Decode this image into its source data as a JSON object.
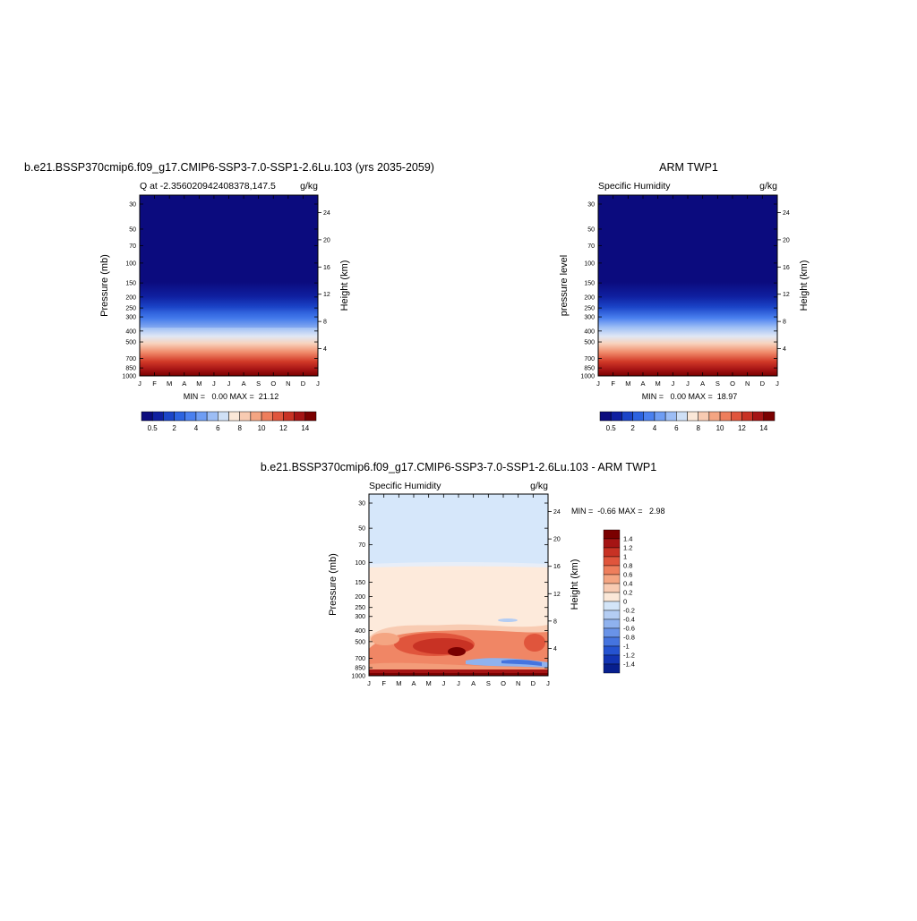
{
  "chart_data": [
    {
      "type": "heatmap",
      "panel": "model",
      "title": "b.e21.BSSP370cmip6.f09_g17.CMIP6-SSP3-7.0-SSP1-2.6Lu.103 (yrs 2035-2059)",
      "subtitle_left": "Q at -2.356020942408378,147.5",
      "subtitle_right": "g/kg",
      "ylabel": "Pressure (mb)",
      "ylabel_right": "Height (km)",
      "x_ticks": [
        "J",
        "F",
        "M",
        "A",
        "M",
        "J",
        "J",
        "A",
        "S",
        "O",
        "N",
        "D",
        "J"
      ],
      "y_ticks": [
        "30",
        "50",
        "70",
        "100",
        "150",
        "200",
        "250",
        "300",
        "400",
        "500",
        "700",
        "850",
        "1000"
      ],
      "y_ticks_right": [
        "24",
        "20",
        "16",
        "12",
        "8",
        "4"
      ],
      "y_scale": "log",
      "ylim": [
        1000,
        25
      ],
      "min_max": "MIN =   0.00 MAX =  21.12",
      "colorbar_labels": [
        "0.5",
        "2",
        "4",
        "6",
        "8",
        "10",
        "12",
        "14"
      ],
      "colorbar_orientation": "horizontal"
    },
    {
      "type": "heatmap",
      "panel": "obs",
      "title": "ARM TWP1",
      "subtitle_left": "Specific Humidity",
      "subtitle_right": "g/kg",
      "ylabel": "pressure level",
      "ylabel_right": "Height (km)",
      "x_ticks": [
        "J",
        "F",
        "M",
        "A",
        "M",
        "J",
        "J",
        "A",
        "S",
        "O",
        "N",
        "D",
        "J"
      ],
      "y_ticks": [
        "30",
        "50",
        "70",
        "100",
        "150",
        "200",
        "250",
        "300",
        "400",
        "500",
        "700",
        "850",
        "1000"
      ],
      "y_ticks_right": [
        "24",
        "20",
        "16",
        "12",
        "8",
        "4"
      ],
      "y_scale": "log",
      "ylim": [
        1000,
        25
      ],
      "min_max": "MIN =   0.00 MAX =  18.97",
      "colorbar_labels": [
        "0.5",
        "2",
        "4",
        "6",
        "8",
        "10",
        "12",
        "14"
      ],
      "colorbar_orientation": "horizontal"
    },
    {
      "type": "heatmap",
      "panel": "difference",
      "title": "b.e21.BSSP370cmip6.f09_g17.CMIP6-SSP3-7.0-SSP1-2.6Lu.103 - ARM TWP1",
      "subtitle_left": "Specific Humidity",
      "subtitle_right": "g/kg",
      "ylabel": "Pressure (mb)",
      "ylabel_right": "Height (km)",
      "x_ticks": [
        "J",
        "F",
        "M",
        "A",
        "M",
        "J",
        "J",
        "A",
        "S",
        "O",
        "N",
        "D",
        "J"
      ],
      "y_ticks": [
        "30",
        "50",
        "70",
        "100",
        "150",
        "200",
        "250",
        "300",
        "400",
        "500",
        "700",
        "850",
        "1000"
      ],
      "y_ticks_right": [
        "24",
        "20",
        "16",
        "12",
        "8",
        "4"
      ],
      "y_scale": "log",
      "ylim": [
        1000,
        25
      ],
      "min_max": "MIN =  -0.66 MAX =   2.98",
      "colorbar_labels": [
        "1.4",
        "1.2",
        "1",
        "0.8",
        "0.6",
        "0.4",
        "0.2",
        "0",
        "-0.2",
        "-0.4",
        "-0.6",
        "-0.8",
        "-1",
        "-1.2",
        "-1.4"
      ],
      "colorbar_orientation": "vertical"
    }
  ],
  "colors": {
    "abs_scale": [
      "#0b0b7e",
      "#0f1fa0",
      "#1b45c8",
      "#2c63e0",
      "#4a80ef",
      "#6f9df3",
      "#9cbdf5",
      "#cfe0f6",
      "#fbe8d8",
      "#f8cbb2",
      "#f4a582",
      "#ee7e5c",
      "#e0553c",
      "#c83224",
      "#a51414",
      "#7a0000"
    ],
    "diff_scale": [
      "#7a0000",
      "#a51414",
      "#c83224",
      "#e0553c",
      "#ee7e5c",
      "#f4a582",
      "#f8cbb2",
      "#fbe8d8",
      "#d3e5f8",
      "#b4cdf3",
      "#8fb2ee",
      "#6993e8",
      "#4574df",
      "#2553d0",
      "#1234b3",
      "#071f8e"
    ]
  }
}
